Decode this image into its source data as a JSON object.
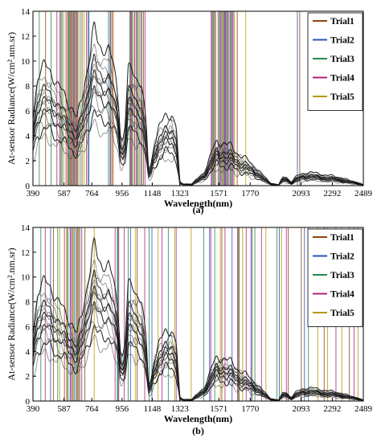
{
  "figure": {
    "panels": [
      "(a)",
      "(b)"
    ]
  },
  "chart_data": [
    {
      "type": "line",
      "panel_label": "(a)",
      "xlabel": "Wavelength(nm)",
      "ylabel": "At-sensor Radiance(W/cm².nm.sr)",
      "xlim": [
        390,
        2489
      ],
      "ylim": [
        0,
        14
      ],
      "xticks": [
        390,
        587,
        764,
        956,
        1148,
        1323,
        1571,
        1770,
        2093,
        2292,
        2489
      ],
      "yticks": [
        0,
        2,
        4,
        6,
        8,
        10,
        12,
        14
      ],
      "grid": false,
      "legend_position": "top-right",
      "legend": [
        {
          "name": "Trial1",
          "color": "#8b4513"
        },
        {
          "name": "Trial2",
          "color": "#2e4fb8"
        },
        {
          "name": "Trial3",
          "color": "#1f8a4c"
        },
        {
          "name": "Trial4",
          "color": "#b0207a"
        },
        {
          "name": "Trial5",
          "color": "#b89a00"
        }
      ],
      "spectra_color": "#333333",
      "spectra_mean": {
        "wavelength": [
          390,
          420,
          460,
          500,
          540,
          600,
          640,
          670,
          700,
          730,
          755,
          765,
          780,
          800,
          830,
          870,
          900,
          920,
          935,
          945,
          960,
          975,
          995,
          1030,
          1080,
          1110,
          1125,
          1140,
          1160,
          1190,
          1230,
          1270,
          1300,
          1323,
          1345,
          1400,
          1480,
          1530,
          1560,
          1600,
          1650,
          1700,
          1760,
          1800,
          1850,
          1900,
          1950,
          1980,
          2000,
          2030,
          2060,
          2100,
          2150,
          2200,
          2250,
          2300,
          2350,
          2400,
          2450,
          2489
        ],
        "radiance": [
          4.0,
          6.3,
          6.9,
          6.6,
          5.9,
          5.0,
          4.5,
          3.8,
          4.9,
          6.5,
          7.7,
          8.6,
          9.1,
          8.2,
          7.8,
          7.9,
          6.9,
          5.9,
          4.8,
          3.1,
          2.6,
          3.4,
          6.7,
          6.5,
          5.8,
          3.3,
          0.9,
          1.2,
          2.5,
          3.3,
          3.9,
          4.2,
          3.4,
          0.2,
          0.1,
          0.1,
          0.8,
          2.0,
          2.5,
          2.5,
          2.2,
          1.8,
          1.4,
          1.1,
          0.6,
          0.15,
          0.05,
          0.5,
          0.5,
          0.2,
          0.5,
          0.7,
          0.75,
          0.7,
          0.6,
          0.55,
          0.45,
          0.3,
          0.2,
          0.05
        ]
      },
      "spectra_scales": [
        0.55,
        0.66,
        0.74,
        0.8,
        0.86,
        0.91,
        0.95,
        0.99,
        1.03,
        1.07,
        1.12,
        1.18,
        1.26,
        1.4
      ],
      "selected_bands": {
        "Trial1": [
          470,
          560,
          610,
          628,
          655,
          676,
          702,
          885,
          1010,
          1050,
          1092,
          1534,
          1574,
          1602,
          1622,
          1650,
          1688,
          2085
        ],
        "Trial2": [
          568,
          617,
          638,
          662,
          746,
          880,
          1020,
          1058,
          1540,
          1580,
          1608,
          1628,
          1656,
          2070
        ],
        "Trial3": [
          430,
          505,
          575,
          622,
          646,
          690,
          740,
          870,
          1005,
          1045,
          1082,
          1528,
          1566,
          1596,
          1616,
          1644
        ],
        "Trial4": [
          542,
          600,
          634,
          650,
          668,
          730,
          895,
          1015,
          1036,
          1075,
          1102,
          1522,
          1550,
          1586,
          1612,
          1636,
          1662
        ],
        "Trial5": [
          585,
          614,
          640,
          672,
          715,
          900,
          1028,
          1066,
          1546,
          1592,
          1670,
          1742
        ]
      }
    },
    {
      "type": "line",
      "panel_label": "(b)",
      "xlabel": "Wavelength(nm)",
      "ylabel": "At-sensor Radiance(W/cm².nm.sr)",
      "xlim": [
        390,
        2489
      ],
      "ylim": [
        0,
        14
      ],
      "xticks": [
        390,
        587,
        764,
        956,
        1148,
        1323,
        1571,
        1770,
        2093,
        2292,
        2489
      ],
      "yticks": [
        0,
        2,
        4,
        6,
        8,
        10,
        12,
        14
      ],
      "grid": false,
      "legend_position": "top-right",
      "legend": [
        {
          "name": "Trial1",
          "color": "#8b4513"
        },
        {
          "name": "Trial2",
          "color": "#2e4fb8"
        },
        {
          "name": "Trial3",
          "color": "#1f8a4c"
        },
        {
          "name": "Trial4",
          "color": "#b0207a"
        },
        {
          "name": "Trial5",
          "color": "#b89a00"
        }
      ],
      "spectra_color": "#333333",
      "spectra_mean": {
        "wavelength": [
          390,
          420,
          460,
          500,
          540,
          600,
          640,
          670,
          700,
          730,
          755,
          765,
          780,
          800,
          830,
          870,
          900,
          920,
          935,
          945,
          960,
          975,
          995,
          1030,
          1080,
          1110,
          1125,
          1140,
          1160,
          1190,
          1230,
          1270,
          1300,
          1323,
          1345,
          1400,
          1480,
          1530,
          1560,
          1600,
          1650,
          1700,
          1760,
          1800,
          1850,
          1900,
          1950,
          1980,
          2000,
          2030,
          2060,
          2100,
          2150,
          2200,
          2250,
          2300,
          2350,
          2400,
          2450,
          2489
        ],
        "radiance": [
          4.0,
          6.3,
          6.9,
          6.6,
          5.9,
          5.0,
          4.5,
          3.8,
          4.9,
          6.5,
          7.7,
          8.6,
          9.1,
          8.2,
          7.8,
          7.9,
          6.9,
          5.9,
          4.8,
          3.1,
          2.6,
          3.4,
          6.7,
          6.5,
          5.8,
          3.3,
          0.9,
          1.2,
          2.5,
          3.3,
          3.9,
          4.2,
          3.4,
          0.2,
          0.1,
          0.1,
          0.8,
          2.0,
          2.5,
          2.5,
          2.2,
          1.8,
          1.4,
          1.1,
          0.6,
          0.15,
          0.05,
          0.5,
          0.5,
          0.2,
          0.5,
          0.7,
          0.75,
          0.7,
          0.6,
          0.55,
          0.45,
          0.3,
          0.2,
          0.05
        ]
      },
      "spectra_scales": [
        0.55,
        0.66,
        0.74,
        0.8,
        0.86,
        0.91,
        0.95,
        0.99,
        1.03,
        1.07,
        1.12,
        1.18,
        1.26,
        1.4
      ],
      "selected_bands": {
        "Trial1": [
          520,
          612,
          640,
          670,
          720,
          935,
          1052,
          1590,
          1700,
          1782,
          2012,
          2095,
          2240,
          2400
        ],
        "Trial2": [
          502,
          626,
          652,
          930,
          1010,
          1146,
          1512,
          1655,
          1775,
          1955,
          2115
        ],
        "Trial3": [
          440,
          547,
          610,
          662,
          688,
          926,
          995,
          1128,
          1250,
          1475,
          1545,
          1694,
          1800,
          1940,
          2140
        ],
        "Trial4": [
          468,
          590,
          631,
          676,
          700,
          912,
          970,
          1100,
          1210,
          1300,
          1520,
          1610,
          1690,
          1745,
          1842,
          2000,
          2315,
          2430
        ],
        "Trial5": [
          560,
          602,
          645,
          682,
          779,
          1040,
          1185,
          1290,
          1395,
          1580,
          1722,
          1870,
          1970,
          2200,
          2262,
          2352,
          2455
        ]
      }
    }
  ]
}
